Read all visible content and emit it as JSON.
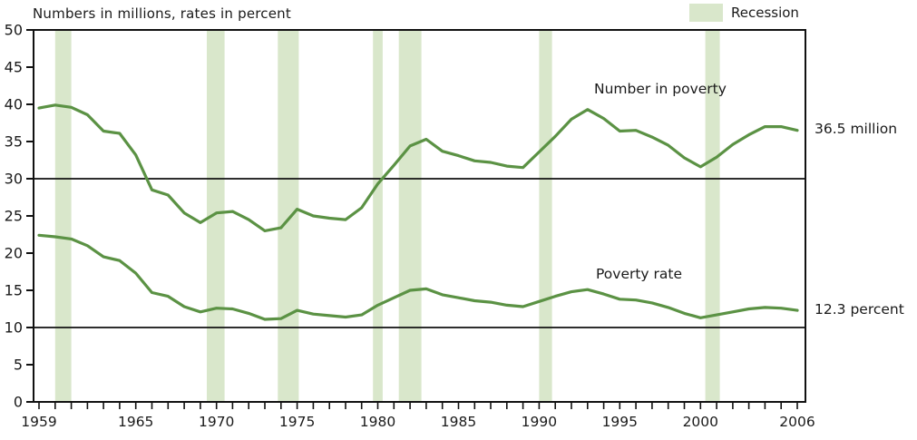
{
  "chart": {
    "title": "Numbers in millions, rates in percent",
    "legend": {
      "label": "Recession"
    },
    "series_labels": {
      "number": "Number in poverty",
      "rate": "Poverty rate"
    },
    "end_annotations": {
      "number": "36.5 million",
      "rate": "12.3 percent"
    }
  },
  "chart_data": {
    "type": "line",
    "title": "Numbers in millions, rates in percent",
    "xlabel": "",
    "ylabel": "Numbers in millions, rates in percent",
    "ylim": [
      0,
      50
    ],
    "yticks": [
      0,
      5,
      10,
      15,
      20,
      25,
      30,
      35,
      40,
      45,
      50
    ],
    "xticks": [
      1959,
      1965,
      1970,
      1975,
      1980,
      1985,
      1990,
      1995,
      2000,
      2006
    ],
    "gridlines_y": [
      10,
      30
    ],
    "legend_position": "top-right",
    "legend_entries": [
      "Recession"
    ],
    "years": [
      1959,
      1960,
      1961,
      1962,
      1963,
      1964,
      1965,
      1966,
      1967,
      1968,
      1969,
      1970,
      1971,
      1972,
      1973,
      1974,
      1975,
      1976,
      1977,
      1978,
      1979,
      1980,
      1981,
      1982,
      1983,
      1984,
      1985,
      1986,
      1987,
      1988,
      1989,
      1990,
      1991,
      1992,
      1993,
      1994,
      1995,
      1996,
      1997,
      1998,
      1999,
      2000,
      2001,
      2002,
      2003,
      2004,
      2005,
      2006
    ],
    "series": [
      {
        "name": "Number in poverty",
        "unit": "millions",
        "end_label": "36.5 million",
        "values": [
          39.5,
          39.9,
          39.6,
          38.6,
          36.4,
          36.1,
          33.2,
          28.5,
          27.8,
          25.4,
          24.1,
          25.4,
          25.6,
          24.5,
          23.0,
          23.4,
          25.9,
          25.0,
          24.7,
          24.5,
          26.1,
          29.3,
          31.8,
          34.4,
          35.3,
          33.7,
          33.1,
          32.4,
          32.2,
          31.7,
          31.5,
          33.6,
          35.7,
          38.0,
          39.3,
          38.1,
          36.4,
          36.5,
          35.6,
          34.5,
          32.8,
          31.6,
          32.9,
          34.6,
          35.9,
          37.0,
          37.0,
          36.5
        ]
      },
      {
        "name": "Poverty rate",
        "unit": "percent",
        "end_label": "12.3 percent",
        "values": [
          22.4,
          22.2,
          21.9,
          21.0,
          19.5,
          19.0,
          17.3,
          14.7,
          14.2,
          12.8,
          12.1,
          12.6,
          12.5,
          11.9,
          11.1,
          11.2,
          12.3,
          11.8,
          11.6,
          11.4,
          11.7,
          13.0,
          14.0,
          15.0,
          15.2,
          14.4,
          14.0,
          13.6,
          13.4,
          13.0,
          12.8,
          13.5,
          14.2,
          14.8,
          15.1,
          14.5,
          13.8,
          13.7,
          13.3,
          12.7,
          11.9,
          11.3,
          11.7,
          12.1,
          12.5,
          12.7,
          12.6,
          12.3
        ]
      }
    ],
    "recession_bands": [
      [
        1960.0,
        1961.0
      ],
      [
        1969.4,
        1970.5
      ],
      [
        1973.8,
        1975.1
      ],
      [
        1979.7,
        1980.3
      ],
      [
        1981.3,
        1982.7
      ],
      [
        1990.0,
        1990.8
      ],
      [
        2000.3,
        2001.2
      ]
    ],
    "colors": {
      "line": "#5b9244",
      "recession_band": "#d9e7cb",
      "axis": "#111111",
      "text": "#1a1a1a"
    }
  }
}
